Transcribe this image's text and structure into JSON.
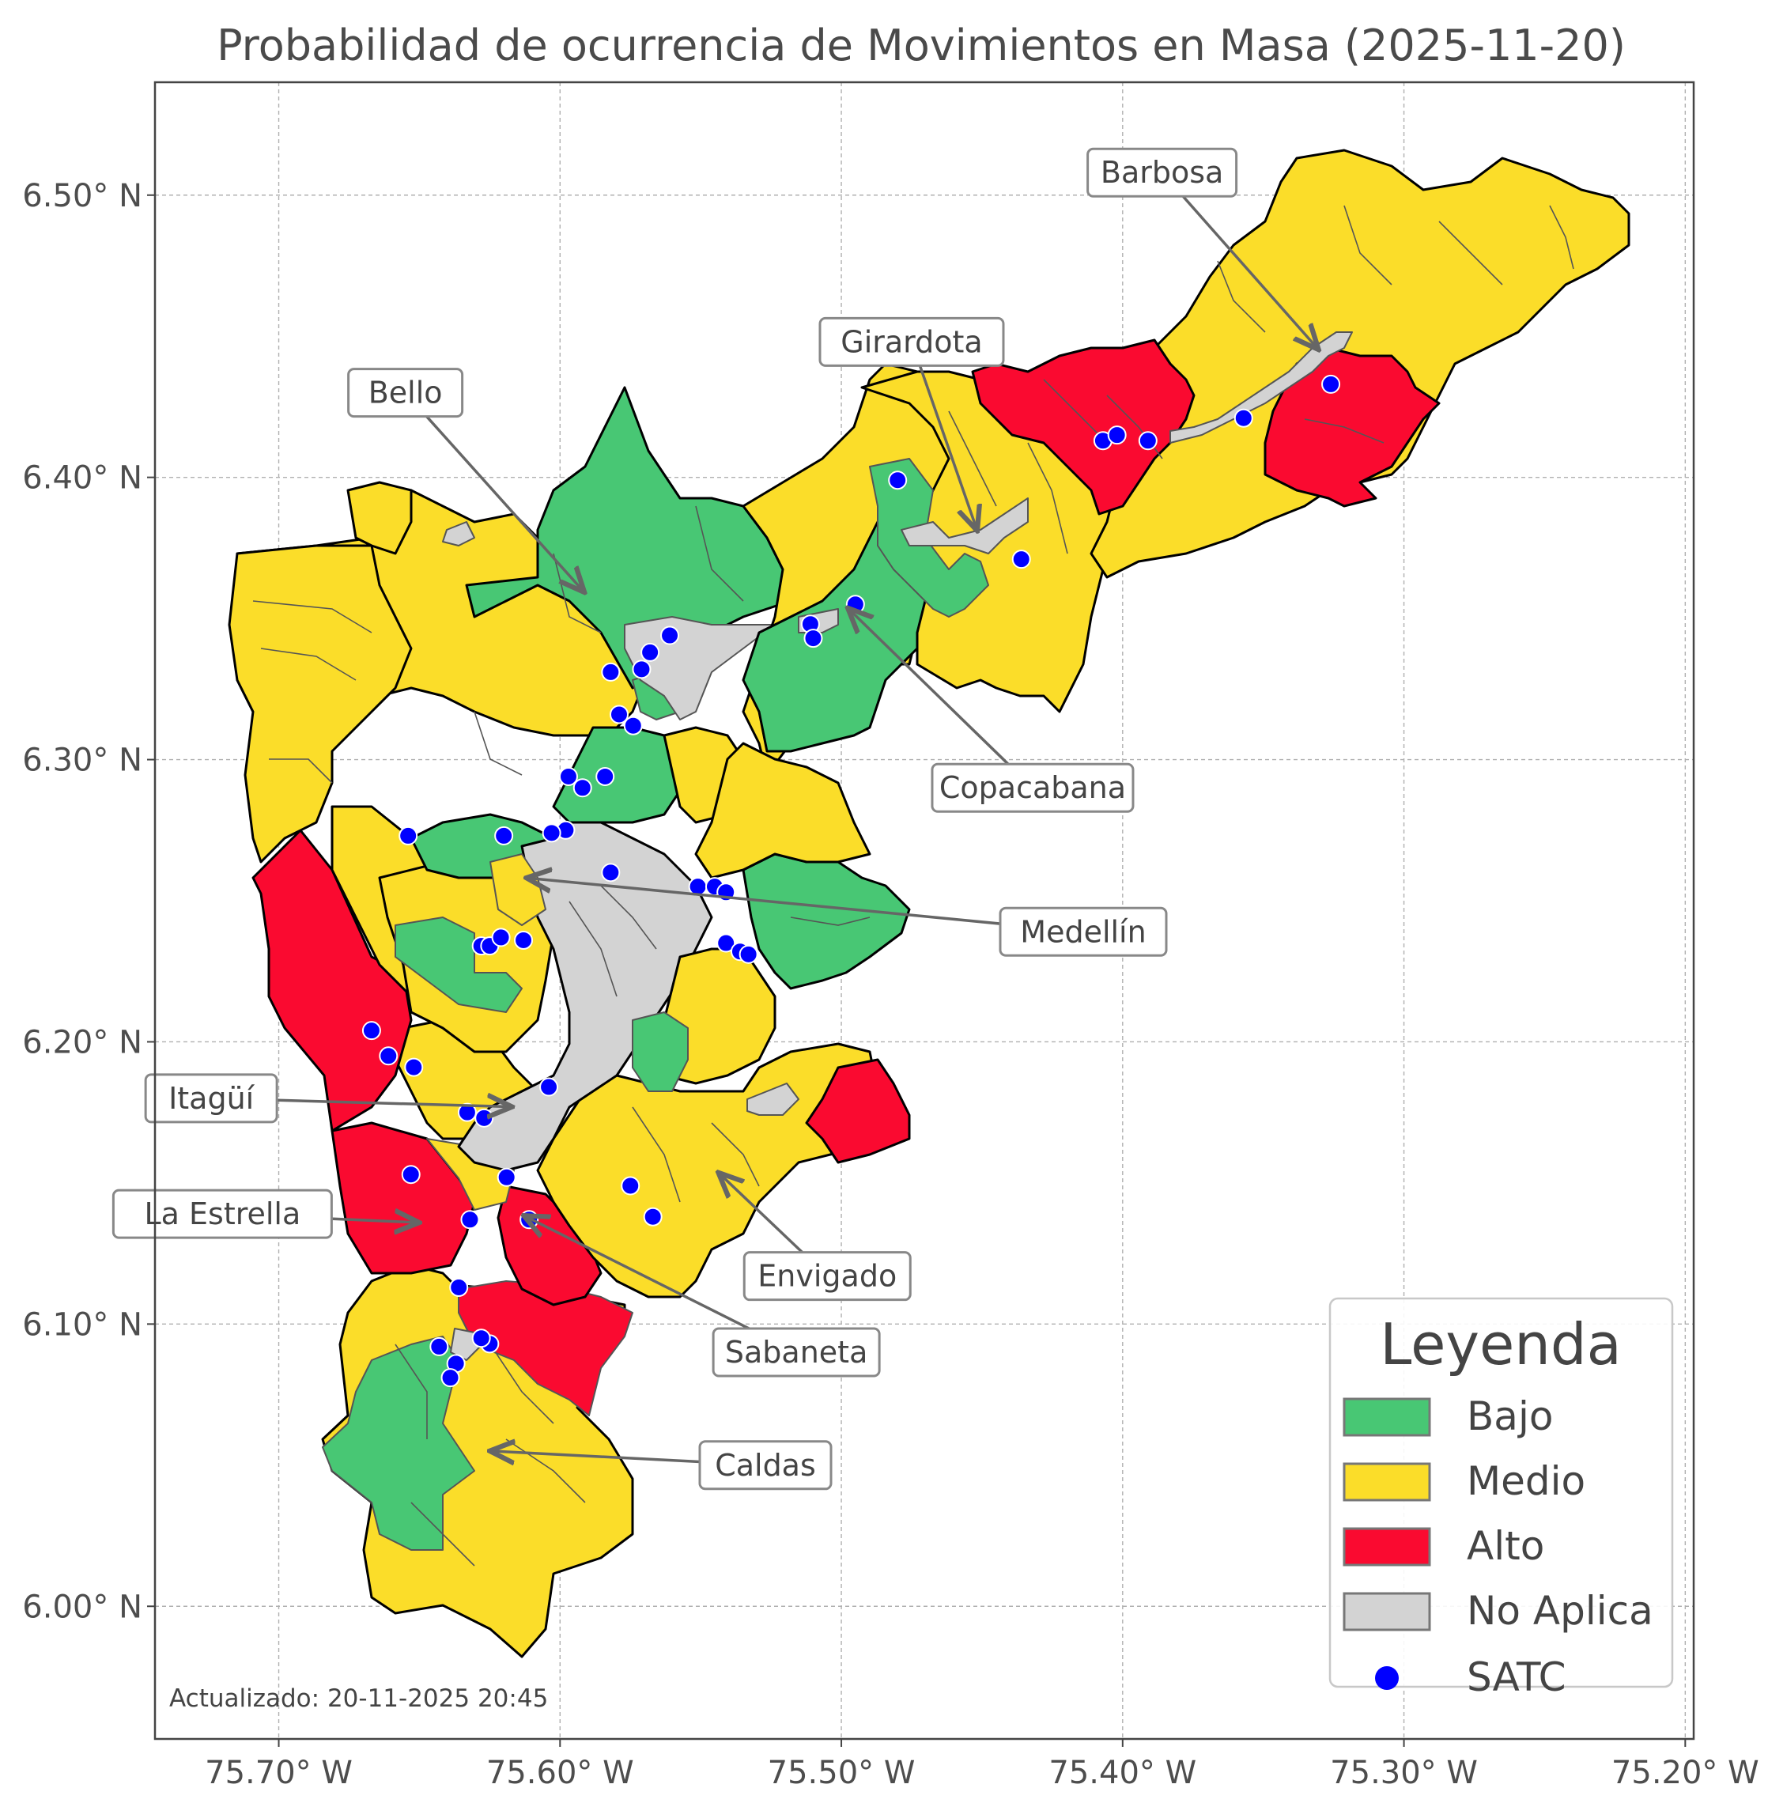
{
  "title": "Probabilidad de ocurrencia de Movimientos en Masa (2025-11-20)",
  "updated": "Actualizado: 20-11-2025 20:45",
  "axes": {
    "x_ticks": [
      "75.70° W",
      "75.60° W",
      "75.50° W",
      "75.40° W",
      "75.30° W",
      "75.20° W"
    ],
    "y_ticks": [
      "6.50° N",
      "6.40° N",
      "6.30° N",
      "6.20° N",
      "6.10° N",
      "6.00° N"
    ],
    "x_values": [
      -75.7,
      -75.6,
      -75.5,
      -75.4,
      -75.3,
      -75.2
    ],
    "y_values": [
      6.5,
      6.4,
      6.3,
      6.2,
      6.1,
      6.0
    ],
    "xlim": [
      -75.744,
      -75.197
    ],
    "ylim": [
      5.953,
      6.54
    ],
    "grid": true
  },
  "municipalities": [
    {
      "name": "Barbosa",
      "label_lon": -75.386,
      "label_lat": 6.508,
      "point_lon": -75.331,
      "point_lat": 6.446
    },
    {
      "name": "Girardota",
      "label_lon": -75.475,
      "label_lat": 6.448,
      "point_lon": -75.452,
      "point_lat": 6.382
    },
    {
      "name": "Bello",
      "label_lon": -75.655,
      "label_lat": 6.43,
      "point_lon": -75.592,
      "point_lat": 6.36
    },
    {
      "name": "Copacabana",
      "label_lon": -75.432,
      "label_lat": 6.29,
      "point_lon": -75.497,
      "point_lat": 6.353
    },
    {
      "name": "Medellín",
      "label_lon": -75.414,
      "label_lat": 6.239,
      "point_lon": -75.611,
      "point_lat": 6.258
    },
    {
      "name": "Itagüí",
      "label_lon": -75.724,
      "label_lat": 6.18,
      "point_lon": -75.618,
      "point_lat": 6.177
    },
    {
      "name": "La Estrella",
      "label_lon": -75.72,
      "label_lat": 6.139,
      "point_lon": -75.651,
      "point_lat": 6.136
    },
    {
      "name": "Envigado",
      "label_lon": -75.505,
      "label_lat": 6.117,
      "point_lon": -75.543,
      "point_lat": 6.153
    },
    {
      "name": "Sabaneta",
      "label_lon": -75.516,
      "label_lat": 6.09,
      "point_lon": -75.612,
      "point_lat": 6.138
    },
    {
      "name": "Caldas",
      "label_lon": -75.527,
      "label_lat": 6.05,
      "point_lon": -75.624,
      "point_lat": 6.055
    }
  ],
  "categories": [
    {
      "key": "bajo",
      "label": "Bajo",
      "color": "#48c774"
    },
    {
      "key": "medio",
      "label": "Medio",
      "color": "#fbdd29"
    },
    {
      "key": "alto",
      "label": "Alto",
      "color": "#fa0a30"
    },
    {
      "key": "no_aplica",
      "label": "No Aplica",
      "color": "#d3d3d3"
    }
  ],
  "legend": {
    "title": "Leyenda",
    "satc_label": "SATC",
    "satc_color": "#0000ff",
    "placement": "bottom-right"
  },
  "satc_stations": [
    [
      -75.48,
      6.399
    ],
    [
      -75.407,
      6.413
    ],
    [
      -75.402,
      6.415
    ],
    [
      -75.391,
      6.413
    ],
    [
      -75.357,
      6.421
    ],
    [
      -75.326,
      6.433
    ],
    [
      -75.436,
      6.371
    ],
    [
      -75.495,
      6.355
    ],
    [
      -75.511,
      6.348
    ],
    [
      -75.51,
      6.343
    ],
    [
      -75.561,
      6.344
    ],
    [
      -75.568,
      6.338
    ],
    [
      -75.571,
      6.332
    ],
    [
      -75.582,
      6.331
    ],
    [
      -75.579,
      6.316
    ],
    [
      -75.574,
      6.312
    ],
    [
      -75.597,
      6.294
    ],
    [
      -75.592,
      6.29
    ],
    [
      -75.584,
      6.294
    ],
    [
      -75.654,
      6.273
    ],
    [
      -75.62,
      6.273
    ],
    [
      -75.598,
      6.275
    ],
    [
      -75.603,
      6.274
    ],
    [
      -75.582,
      6.26
    ],
    [
      -75.551,
      6.255
    ],
    [
      -75.545,
      6.255
    ],
    [
      -75.541,
      6.253
    ],
    [
      -75.541,
      6.235
    ],
    [
      -75.536,
      6.232
    ],
    [
      -75.533,
      6.231
    ],
    [
      -75.628,
      6.234
    ],
    [
      -75.625,
      6.234
    ],
    [
      -75.621,
      6.237
    ],
    [
      -75.613,
      6.236
    ],
    [
      -75.667,
      6.204
    ],
    [
      -75.661,
      6.195
    ],
    [
      -75.652,
      6.191
    ],
    [
      -75.604,
      6.184
    ],
    [
      -75.633,
      6.175
    ],
    [
      -75.627,
      6.173
    ],
    [
      -75.653,
      6.153
    ],
    [
      -75.619,
      6.152
    ],
    [
      -75.575,
      6.149
    ],
    [
      -75.567,
      6.138
    ],
    [
      -75.611,
      6.137
    ],
    [
      -75.632,
      6.137
    ],
    [
      -75.636,
      6.113
    ],
    [
      -75.643,
      6.092
    ],
    [
      -75.625,
      6.093
    ],
    [
      -75.628,
      6.095
    ],
    [
      -75.637,
      6.086
    ],
    [
      -75.639,
      6.081
    ]
  ]
}
